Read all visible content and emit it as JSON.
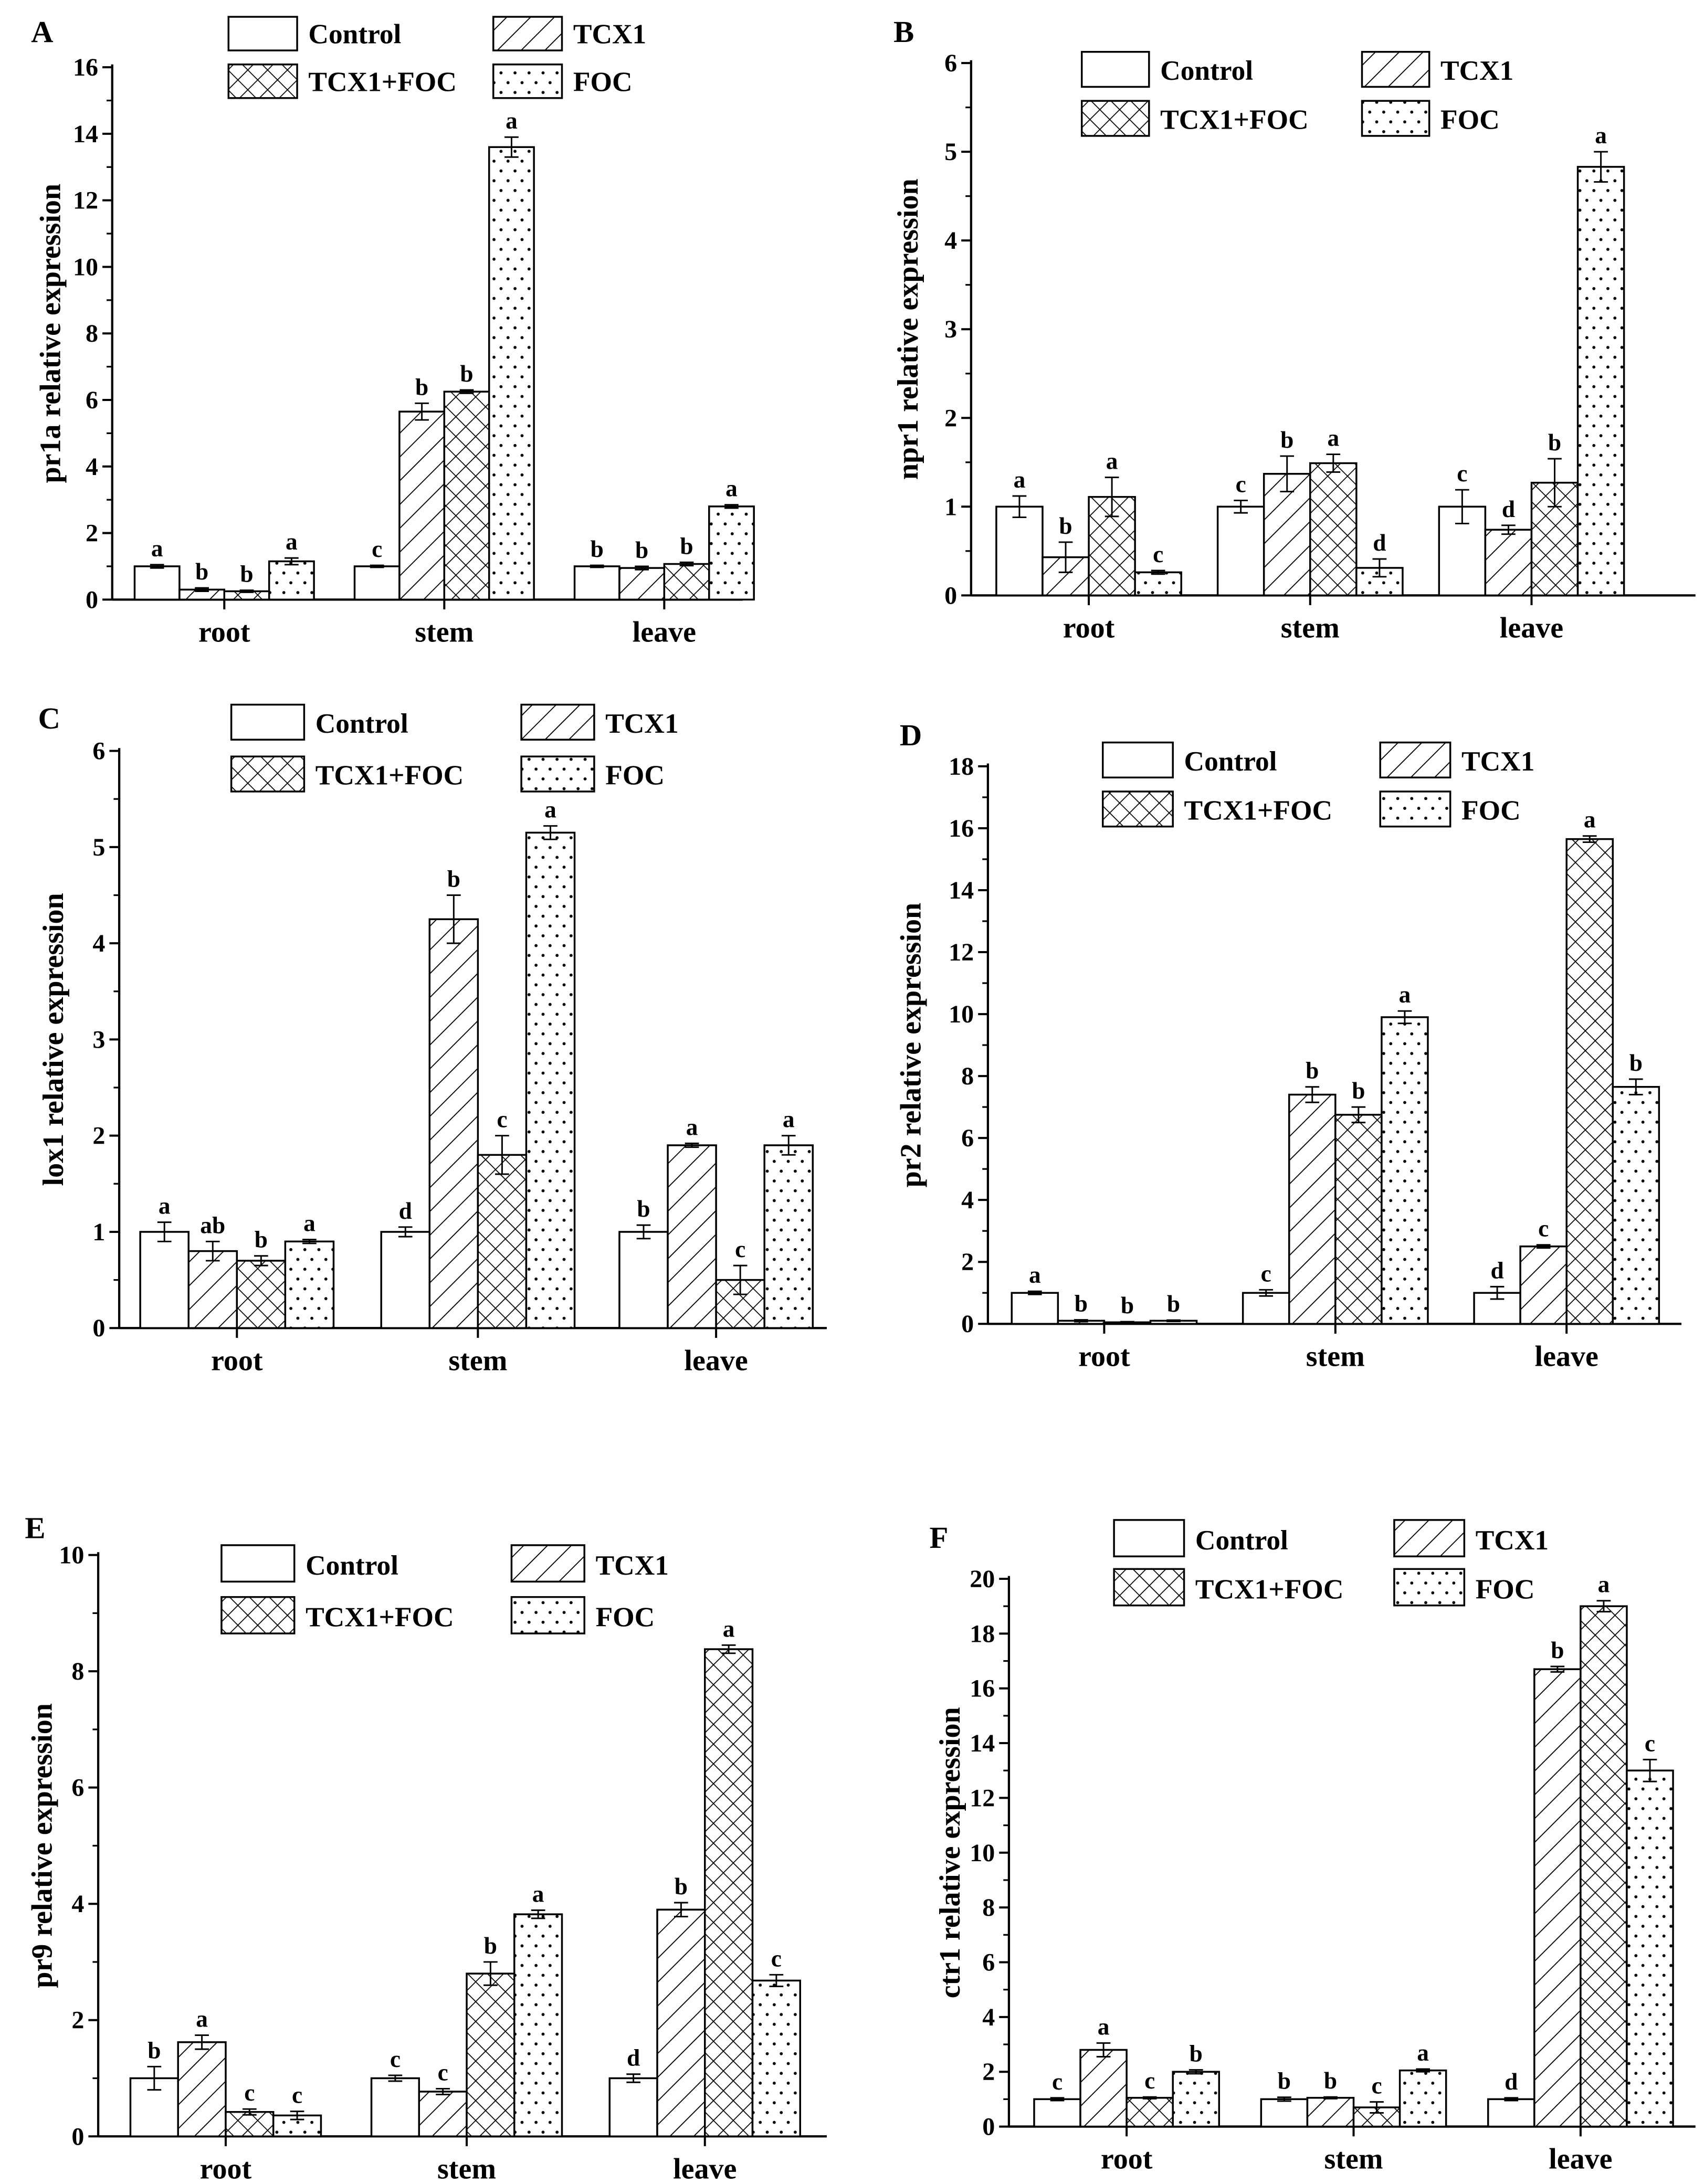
{
  "legend": [
    "Control",
    "TCX1",
    "TCX1+FOC",
    "FOC"
  ],
  "colors": {
    "bar_fill": "#ffffff",
    "stroke": "#000000"
  },
  "chart_data": [
    {
      "panel": "A",
      "type": "bar",
      "ylabel": "pr1a relative expression",
      "xlabel": "",
      "ylim": [
        0,
        16
      ],
      "yticks": [
        0,
        2,
        4,
        6,
        8,
        10,
        12,
        14,
        16
      ],
      "categories": [
        "root",
        "stem",
        "leave"
      ],
      "series": [
        {
          "name": "Control",
          "values": [
            1.0,
            1.0,
            1.0
          ],
          "errors": [
            0.05,
            0.03,
            0.03
          ],
          "letters": [
            "a",
            "c",
            "b"
          ]
        },
        {
          "name": "TCX1",
          "values": [
            0.3,
            5.65,
            0.95
          ],
          "errors": [
            0.05,
            0.25,
            0.05
          ],
          "letters": [
            "b",
            "b",
            "b"
          ]
        },
        {
          "name": "TCX1+FOC",
          "values": [
            0.25,
            6.25,
            1.07
          ],
          "errors": [
            0.03,
            0.05,
            0.05
          ],
          "letters": [
            "b",
            "b",
            "b"
          ]
        },
        {
          "name": "FOC",
          "values": [
            1.15,
            13.6,
            2.8
          ],
          "errors": [
            0.1,
            0.3,
            0.05
          ],
          "letters": [
            "a",
            "a",
            "a"
          ]
        }
      ]
    },
    {
      "panel": "B",
      "type": "bar",
      "ylabel": "npr1 relative expression",
      "xlabel": "",
      "ylim": [
        0,
        6
      ],
      "yticks": [
        0,
        1,
        2,
        3,
        4,
        5,
        6
      ],
      "categories": [
        "root",
        "stem",
        "leave"
      ],
      "series": [
        {
          "name": "Control",
          "values": [
            1.0,
            1.0,
            1.0
          ],
          "errors": [
            0.12,
            0.07,
            0.19
          ],
          "letters": [
            "a",
            "c",
            "c"
          ]
        },
        {
          "name": "TCX1",
          "values": [
            0.43,
            1.37,
            0.74
          ],
          "errors": [
            0.17,
            0.2,
            0.05
          ],
          "letters": [
            "b",
            "b",
            "d"
          ]
        },
        {
          "name": "TCX1+FOC",
          "values": [
            1.11,
            1.49,
            1.27
          ],
          "errors": [
            0.22,
            0.1,
            0.27
          ],
          "letters": [
            "a",
            "a",
            "b"
          ]
        },
        {
          "name": "FOC",
          "values": [
            0.26,
            0.31,
            4.83
          ],
          "errors": [
            0.02,
            0.1,
            0.17
          ],
          "letters": [
            "c",
            "d",
            "a"
          ]
        }
      ]
    },
    {
      "panel": "C",
      "type": "bar",
      "ylabel": "lox1 relative expression",
      "xlabel": "",
      "ylim": [
        0,
        6
      ],
      "yticks": [
        0,
        1,
        2,
        3,
        4,
        5,
        6
      ],
      "categories": [
        "root",
        "stem",
        "leave"
      ],
      "series": [
        {
          "name": "Control",
          "values": [
            1.0,
            1.0,
            1.0
          ],
          "errors": [
            0.1,
            0.05,
            0.07
          ],
          "letters": [
            "a",
            "d",
            "b"
          ]
        },
        {
          "name": "TCX1",
          "values": [
            0.8,
            4.25,
            1.9
          ],
          "errors": [
            0.1,
            0.25,
            0.02
          ],
          "letters": [
            "ab",
            "b",
            "a"
          ]
        },
        {
          "name": "TCX1+FOC",
          "values": [
            0.7,
            1.8,
            0.5
          ],
          "errors": [
            0.05,
            0.2,
            0.15
          ],
          "letters": [
            "b",
            "c",
            "c"
          ]
        },
        {
          "name": "FOC",
          "values": [
            0.9,
            5.15,
            1.9
          ],
          "errors": [
            0.02,
            0.07,
            0.1
          ],
          "letters": [
            "a",
            "a",
            "a"
          ]
        }
      ]
    },
    {
      "panel": "D",
      "type": "bar",
      "ylabel": "pr2 relative expression",
      "xlabel": "",
      "ylim": [
        0,
        18
      ],
      "yticks": [
        0,
        2,
        4,
        6,
        8,
        10,
        12,
        14,
        16,
        18
      ],
      "categories": [
        "root",
        "stem",
        "leave"
      ],
      "series": [
        {
          "name": "Control",
          "values": [
            1.0,
            1.0,
            1.0
          ],
          "errors": [
            0.05,
            0.1,
            0.2
          ],
          "letters": [
            "a",
            "c",
            "d"
          ]
        },
        {
          "name": "TCX1",
          "values": [
            0.1,
            7.4,
            2.5
          ],
          "errors": [
            0.03,
            0.25,
            0.05
          ],
          "letters": [
            "b",
            "b",
            "c"
          ]
        },
        {
          "name": "TCX1+FOC",
          "values": [
            0.05,
            6.75,
            15.65
          ],
          "errors": [
            0.02,
            0.25,
            0.1
          ],
          "letters": [
            "b",
            "b",
            "a"
          ]
        },
        {
          "name": "FOC",
          "values": [
            0.1,
            9.9,
            7.65
          ],
          "errors": [
            0.02,
            0.2,
            0.25
          ],
          "letters": [
            "b",
            "a",
            "b"
          ]
        }
      ]
    },
    {
      "panel": "E",
      "type": "bar",
      "ylabel": "pr9 relative expression",
      "xlabel": "",
      "ylim": [
        0,
        10
      ],
      "yticks": [
        0,
        2,
        4,
        6,
        8,
        10
      ],
      "categories": [
        "root",
        "stem",
        "leave"
      ],
      "series": [
        {
          "name": "Control",
          "values": [
            1.0,
            1.0,
            1.0
          ],
          "errors": [
            0.2,
            0.05,
            0.07
          ],
          "letters": [
            "b",
            "c",
            "d"
          ]
        },
        {
          "name": "TCX1",
          "values": [
            1.62,
            0.77,
            3.9
          ],
          "errors": [
            0.12,
            0.05,
            0.12
          ],
          "letters": [
            "a",
            "c",
            "b"
          ]
        },
        {
          "name": "TCX1+FOC",
          "values": [
            0.42,
            2.8,
            8.38
          ],
          "errors": [
            0.05,
            0.2,
            0.07
          ],
          "letters": [
            "c",
            "b",
            "a"
          ]
        },
        {
          "name": "FOC",
          "values": [
            0.36,
            3.82,
            2.68
          ],
          "errors": [
            0.07,
            0.07,
            0.1
          ],
          "letters": [
            "c",
            "a",
            "c"
          ]
        }
      ]
    },
    {
      "panel": "F",
      "type": "bar",
      "ylabel": "ctr1 relative expression",
      "xlabel": "",
      "ylim": [
        0,
        20
      ],
      "yticks": [
        0,
        2,
        4,
        6,
        8,
        10,
        12,
        14,
        16,
        18,
        20
      ],
      "categories": [
        "root",
        "stem",
        "leave"
      ],
      "series": [
        {
          "name": "Control",
          "values": [
            1.0,
            1.0,
            1.0
          ],
          "errors": [
            0.05,
            0.07,
            0.05
          ],
          "letters": [
            "c",
            "b",
            "d"
          ]
        },
        {
          "name": "TCX1",
          "values": [
            2.8,
            1.05,
            16.7
          ],
          "errors": [
            0.25,
            0.03,
            0.1
          ],
          "letters": [
            "a",
            "b",
            "b"
          ]
        },
        {
          "name": "TCX1+FOC",
          "values": [
            1.05,
            0.7,
            19.0
          ],
          "errors": [
            0.03,
            0.2,
            0.2
          ],
          "letters": [
            "c",
            "c",
            "a"
          ]
        },
        {
          "name": "FOC",
          "values": [
            2.0,
            2.05,
            13.0
          ],
          "errors": [
            0.07,
            0.05,
            0.4
          ],
          "letters": [
            "b",
            "a",
            "c"
          ]
        }
      ]
    }
  ]
}
